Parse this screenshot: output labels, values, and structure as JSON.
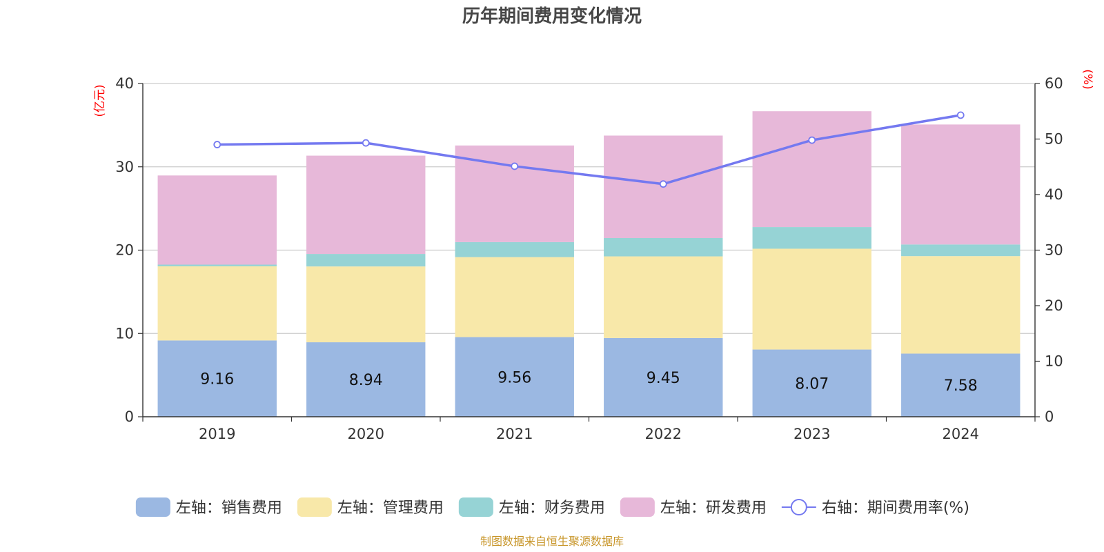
{
  "chart_data": {
    "type": "bar",
    "title": "历年期间费用变化情况",
    "categories": [
      "2019",
      "2020",
      "2021",
      "2022",
      "2023",
      "2024"
    ],
    "left_axis": {
      "unit": "(亿元)",
      "ylim": [
        0,
        40
      ],
      "ticks": [
        0,
        10,
        20,
        30,
        40
      ]
    },
    "right_axis": {
      "unit": "(%)",
      "ylim": [
        0,
        60
      ],
      "ticks": [
        0,
        10,
        20,
        30,
        40,
        50,
        60
      ]
    },
    "series": [
      {
        "name": "左轴：销售费用",
        "kind": "bar",
        "axis": "left",
        "color": "#9bb8e2",
        "values": [
          9.16,
          8.94,
          9.56,
          9.45,
          8.07,
          7.58
        ],
        "show_labels": true
      },
      {
        "name": "左轴：管理费用",
        "kind": "bar",
        "axis": "left",
        "color": "#f8e8a9",
        "values": [
          8.9,
          9.1,
          9.6,
          9.8,
          12.1,
          11.7
        ],
        "show_labels": false
      },
      {
        "name": "左轴：财务费用",
        "kind": "bar",
        "axis": "left",
        "color": "#96d3d5",
        "values": [
          0.2,
          1.5,
          1.8,
          2.2,
          2.6,
          1.4
        ],
        "show_labels": false
      },
      {
        "name": "左轴：研发费用",
        "kind": "bar",
        "axis": "left",
        "color": "#e7b8d9",
        "values": [
          10.7,
          11.8,
          11.6,
          12.3,
          13.9,
          14.4
        ],
        "show_labels": false
      },
      {
        "name": "右轴：期间费用率(%)",
        "kind": "line",
        "axis": "right",
        "color": "#7479f0",
        "values": [
          49.0,
          49.3,
          45.1,
          41.9,
          49.8,
          54.3
        ],
        "show_labels": false
      }
    ],
    "grid": true,
    "legend_position": "bottom"
  },
  "source_note": "制图数据来自恒生聚源数据库"
}
